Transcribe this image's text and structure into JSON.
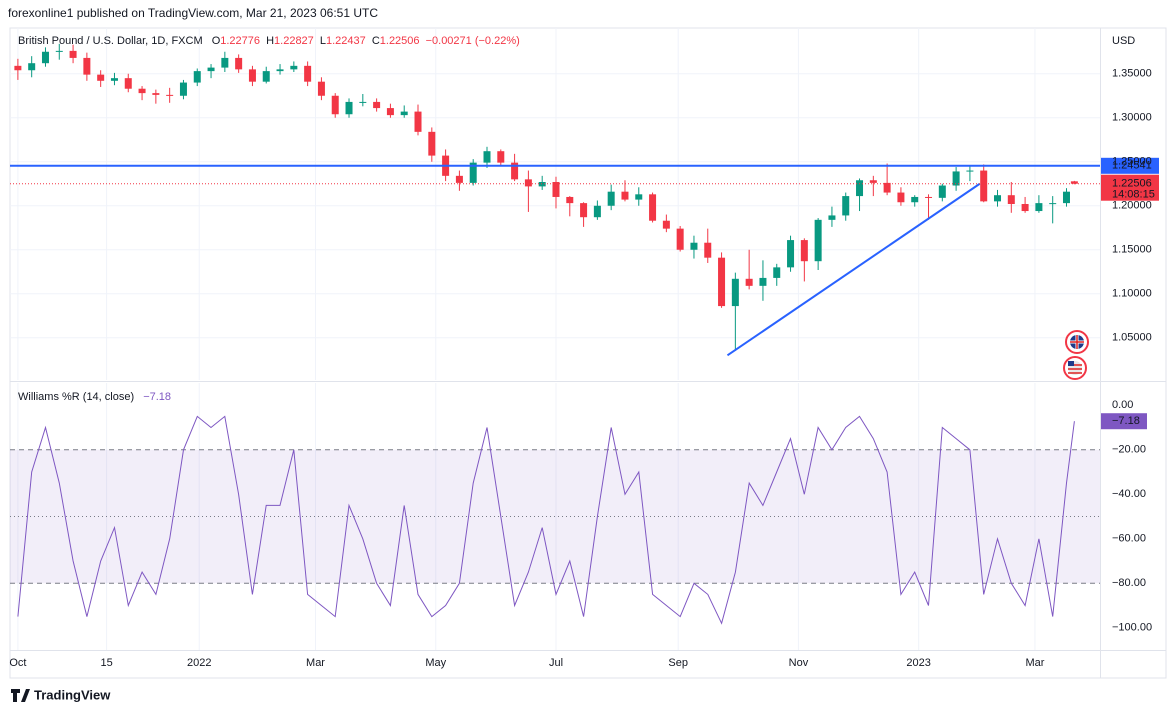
{
  "header": {
    "published": "forexonline1 published on TradingView.com, Mar 21, 2023 06:51 UTC"
  },
  "footer": {
    "brand": "TradingView"
  },
  "chart_data": [
    {
      "type": "candlestick",
      "title": "British Pound / U.S. Dollar, 1D, FXCM",
      "currency": "USD",
      "ohlc_letters": [
        "O",
        "H",
        "L",
        "C"
      ],
      "change_label": "−0.00271 (−0.22%)",
      "up_color": "#089981",
      "down_color": "#f23645",
      "x": [
        "2021-10-01",
        "2021-10-08",
        "2021-10-15",
        "2021-10-22",
        "2021-10-29",
        "2021-11-05",
        "2021-11-12",
        "2021-11-19",
        "2021-11-26",
        "2021-12-03",
        "2021-12-10",
        "2021-12-17",
        "2021-12-24",
        "2021-12-31",
        "2022-01-07",
        "2022-01-14",
        "2022-01-21",
        "2022-01-28",
        "2022-02-04",
        "2022-02-11",
        "2022-02-18",
        "2022-02-25",
        "2022-03-04",
        "2022-03-11",
        "2022-03-18",
        "2022-03-25",
        "2022-04-01",
        "2022-04-08",
        "2022-04-15",
        "2022-04-22",
        "2022-04-29",
        "2022-05-06",
        "2022-05-13",
        "2022-05-20",
        "2022-05-27",
        "2022-06-03",
        "2022-06-10",
        "2022-06-17",
        "2022-06-24",
        "2022-07-01",
        "2022-07-08",
        "2022-07-15",
        "2022-07-22",
        "2022-07-29",
        "2022-08-05",
        "2022-08-12",
        "2022-08-19",
        "2022-08-26",
        "2022-09-02",
        "2022-09-09",
        "2022-09-16",
        "2022-09-23",
        "2022-09-30",
        "2022-10-07",
        "2022-10-14",
        "2022-10-21",
        "2022-10-28",
        "2022-11-04",
        "2022-11-11",
        "2022-11-18",
        "2022-11-25",
        "2022-12-02",
        "2022-12-09",
        "2022-12-16",
        "2022-12-23",
        "2022-12-30",
        "2023-01-06",
        "2023-01-13",
        "2023-01-20",
        "2023-01-27",
        "2023-02-03",
        "2023-02-10",
        "2023-02-17",
        "2023-02-24",
        "2023-03-03",
        "2023-03-10",
        "2023-03-17",
        "2023-03-21"
      ],
      "open": [
        1.359,
        1.354,
        1.362,
        1.375,
        1.376,
        1.368,
        1.349,
        1.342,
        1.345,
        1.333,
        1.328,
        1.326,
        1.325,
        1.34,
        1.353,
        1.357,
        1.368,
        1.355,
        1.341,
        1.353,
        1.355,
        1.359,
        1.341,
        1.325,
        1.304,
        1.318,
        1.318,
        1.311,
        1.303,
        1.307,
        1.284,
        1.257,
        1.234,
        1.226,
        1.249,
        1.262,
        1.249,
        1.23,
        1.222,
        1.227,
        1.21,
        1.203,
        1.187,
        1.2,
        1.216,
        1.207,
        1.213,
        1.183,
        1.174,
        1.15,
        1.158,
        1.141,
        1.086,
        1.117,
        1.109,
        1.118,
        1.13,
        1.161,
        1.137,
        1.184,
        1.189,
        1.211,
        1.229,
        1.226,
        1.215,
        1.204,
        1.21,
        1.209,
        1.223,
        1.239,
        1.24,
        1.205,
        1.212,
        1.202,
        1.194,
        1.203,
        1.203,
        1.22776
      ],
      "high": [
        1.367,
        1.37,
        1.38,
        1.384,
        1.383,
        1.374,
        1.354,
        1.351,
        1.35,
        1.336,
        1.332,
        1.334,
        1.343,
        1.356,
        1.361,
        1.375,
        1.372,
        1.359,
        1.358,
        1.361,
        1.364,
        1.364,
        1.346,
        1.328,
        1.322,
        1.327,
        1.322,
        1.316,
        1.314,
        1.315,
        1.289,
        1.264,
        1.24,
        1.253,
        1.267,
        1.264,
        1.259,
        1.24,
        1.234,
        1.233,
        1.211,
        1.204,
        1.206,
        1.224,
        1.229,
        1.221,
        1.215,
        1.19,
        1.177,
        1.166,
        1.174,
        1.147,
        1.124,
        1.15,
        1.138,
        1.134,
        1.166,
        1.163,
        1.186,
        1.199,
        1.215,
        1.231,
        1.234,
        1.248,
        1.221,
        1.212,
        1.213,
        1.225,
        1.244,
        1.245,
        1.247,
        1.218,
        1.227,
        1.21,
        1.212,
        1.211,
        1.22,
        1.22827
      ],
      "low": [
        1.343,
        1.346,
        1.358,
        1.366,
        1.362,
        1.342,
        1.335,
        1.337,
        1.329,
        1.32,
        1.316,
        1.317,
        1.321,
        1.336,
        1.345,
        1.352,
        1.351,
        1.336,
        1.339,
        1.349,
        1.352,
        1.336,
        1.32,
        1.3,
        1.3,
        1.313,
        1.307,
        1.3,
        1.3,
        1.28,
        1.25,
        1.228,
        1.217,
        1.223,
        1.243,
        1.246,
        1.228,
        1.193,
        1.218,
        1.197,
        1.188,
        1.176,
        1.184,
        1.195,
        1.205,
        1.2,
        1.181,
        1.17,
        1.148,
        1.14,
        1.135,
        1.084,
        1.035,
        1.105,
        1.092,
        1.109,
        1.125,
        1.114,
        1.127,
        1.176,
        1.183,
        1.194,
        1.211,
        1.212,
        1.2,
        1.199,
        1.184,
        1.205,
        1.217,
        1.228,
        1.204,
        1.199,
        1.192,
        1.192,
        1.192,
        1.18,
        1.199,
        1.22437
      ],
      "close": [
        1.354,
        1.362,
        1.375,
        1.376,
        1.368,
        1.349,
        1.342,
        1.345,
        1.333,
        1.328,
        1.326,
        1.325,
        1.34,
        1.353,
        1.357,
        1.368,
        1.355,
        1.341,
        1.353,
        1.355,
        1.359,
        1.341,
        1.325,
        1.304,
        1.318,
        1.318,
        1.311,
        1.303,
        1.307,
        1.284,
        1.257,
        1.234,
        1.226,
        1.249,
        1.262,
        1.249,
        1.23,
        1.222,
        1.227,
        1.21,
        1.203,
        1.187,
        1.2,
        1.216,
        1.207,
        1.213,
        1.183,
        1.174,
        1.15,
        1.158,
        1.141,
        1.086,
        1.117,
        1.109,
        1.118,
        1.13,
        1.161,
        1.137,
        1.184,
        1.189,
        1.211,
        1.229,
        1.226,
        1.215,
        1.204,
        1.21,
        1.209,
        1.223,
        1.239,
        1.24,
        1.205,
        1.212,
        1.202,
        1.194,
        1.203,
        1.203,
        1.216,
        1.22506
      ],
      "countdown": "14:08:15",
      "level": {
        "value": 1.24541,
        "color": "#2962ff"
      },
      "trendline": {
        "x": [
          "2022-09-26",
          "2023-02-01"
        ],
        "values": [
          1.03,
          1.225
        ],
        "color": "#2962ff"
      },
      "xlim": [
        "2021-09-27",
        "2023-04-03"
      ],
      "ylim": [
        1.002,
        1.402
      ],
      "yticks": [
        {
          "value": 1.05,
          "label": "1.05000"
        },
        {
          "value": 1.1,
          "label": "1.10000"
        },
        {
          "value": 1.15,
          "label": "1.15000"
        },
        {
          "value": 1.2,
          "label": "1.20000"
        },
        {
          "value": 1.25,
          "label": "1.25000"
        },
        {
          "value": 1.3,
          "label": "1.30000"
        },
        {
          "value": 1.35,
          "label": "1.35000"
        }
      ],
      "xticks": [
        {
          "value": "2021-10-01",
          "label": "Oct"
        },
        {
          "value": "2021-11-15",
          "label": "15"
        },
        {
          "value": "2022-01-01",
          "label": "2022"
        },
        {
          "value": "2022-03-01",
          "label": "Mar"
        },
        {
          "value": "2022-05-01",
          "label": "May"
        },
        {
          "value": "2022-07-01",
          "label": "Jul"
        },
        {
          "value": "2022-09-01",
          "label": "Sep"
        },
        {
          "value": "2022-11-01",
          "label": "Nov"
        },
        {
          "value": "2023-01-01",
          "label": "2023"
        },
        {
          "value": "2023-03-01",
          "label": "Mar"
        }
      ],
      "grid": true
    },
    {
      "type": "line",
      "title": "Williams %R (14, close)",
      "series": [
        {
          "color": "#7e57c2",
          "values": [
            -95,
            -30,
            -10,
            -35,
            -70,
            -95,
            -70,
            -55,
            -90,
            -75,
            -85,
            -60,
            -20,
            -5,
            -10,
            -5,
            -40,
            -85,
            -45,
            -45,
            -20,
            -85,
            -90,
            -95,
            -45,
            -60,
            -80,
            -90,
            -45,
            -85,
            -95,
            -90,
            -80,
            -35,
            -10,
            -50,
            -90,
            -75,
            -55,
            -85,
            -70,
            -95,
            -50,
            -10,
            -40,
            -30,
            -85,
            -90,
            -95,
            -80,
            -85,
            -98,
            -75,
            -35,
            -45,
            -30,
            -15,
            -40,
            -10,
            -20,
            -10,
            -5,
            -15,
            -30,
            -85,
            -75,
            -90,
            -10,
            -15,
            -20,
            -85,
            -60,
            -80,
            -90,
            -60,
            -95,
            -35,
            -7.18
          ],
          "value_labels": {
            "77": "−7.18"
          }
        }
      ],
      "band": [
        -20,
        -80
      ],
      "midline": -50,
      "band_color": "#7e57c2",
      "ylim": [
        -110,
        10
      ],
      "yticks": [
        {
          "value": 0,
          "label": "0.00"
        },
        {
          "value": -20,
          "label": "−20.00"
        },
        {
          "value": -40,
          "label": "−40.00"
        },
        {
          "value": -60,
          "label": "−60.00"
        },
        {
          "value": -80,
          "label": "−80.00"
        },
        {
          "value": -100,
          "label": "−100.00"
        }
      ]
    }
  ]
}
